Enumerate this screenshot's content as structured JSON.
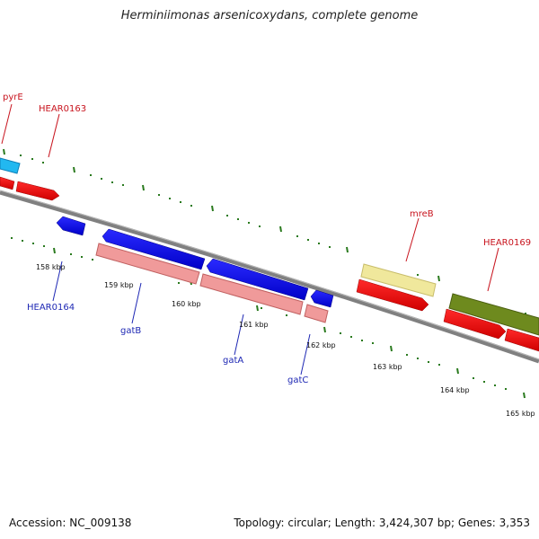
{
  "title": "Herminiimonas arsenicoxydans, complete genome",
  "footer": {
    "accession": "Accession: NC_009138",
    "topology": "Topology: circular; Length: 3,424,307 bp; Genes: 3,353"
  },
  "colors": {
    "backbone": "#808080",
    "tick": "#2a7a1e",
    "red_label": "#c8141e",
    "blue_label": "#1e28b4"
  },
  "scale_labels": [
    "158 kbp",
    "159 kbp",
    "160 kbp",
    "161 kbp",
    "162 kbp",
    "163 kbp",
    "164 kbp",
    "165 kbp"
  ],
  "forward_labels": [
    "pyrE",
    "HEAR0163",
    "mreB",
    "HEAR0169"
  ],
  "reverse_labels": [
    "HEAR0164",
    "gatB",
    "gatA",
    "gatC"
  ]
}
